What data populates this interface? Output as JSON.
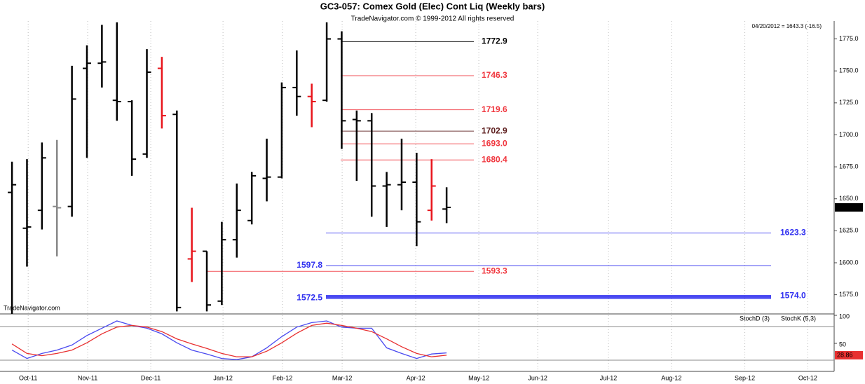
{
  "chart_data": [
    {
      "type": "ohlc",
      "title": "GC3-057:  Comex Gold (Elec) Cont Liq  (Weekly bars)",
      "subtitle": "TradeNavigator.com © 1999-2012 All rights reserved",
      "annotation": "04/20/2012 = 1643.3 (-16.5)",
      "watermark": "TradeNavigator.com",
      "categories": [
        null,
        null,
        null,
        null,
        null,
        null,
        null,
        null,
        null,
        null,
        null,
        null,
        null,
        null,
        null,
        null,
        null,
        null,
        null,
        null,
        null,
        null,
        null,
        null,
        null,
        null,
        null,
        null,
        null,
        null
      ],
      "open": [
        1655,
        1627,
        1641,
        1644,
        1644,
        1752,
        1756,
        1727,
        1726,
        1685,
        1752,
        1716,
        1603,
        1609,
        1570,
        1618,
        1633,
        1666,
        1667,
        1737,
        1730,
        1727,
        1775,
        1712,
        1711,
        1660,
        1661,
        1663,
        1641,
        1642
      ],
      "high": [
        1679,
        1681,
        1694,
        1696,
        1754,
        1770,
        1786,
        1788,
        1727,
        1767,
        1761,
        1719,
        1643,
        1609,
        1632,
        1662,
        1671,
        1697,
        1741,
        1766,
        1740,
        1788,
        1781,
        1719,
        1717,
        1671,
        1697,
        1686,
        1681,
        1659
      ],
      "low": [
        1560,
        1597,
        1626,
        1605,
        1636,
        1682,
        1737,
        1711,
        1668,
        1682,
        1705,
        1562,
        1585,
        1562,
        1567,
        1604,
        1630,
        1648,
        1666,
        1715,
        1706,
        1726,
        1689,
        1664,
        1636,
        1628,
        1641,
        1613,
        1633,
        1631
      ],
      "close": [
        1661,
        1628,
        1682,
        1643,
        1728,
        1756,
        1757,
        1726,
        1681,
        1749,
        1715,
        1565,
        1609,
        1567,
        1618,
        1641,
        1668,
        1667,
        1737,
        1730,
        1726,
        1775,
        1711,
        1711,
        1660,
        1661,
        1663,
        1632,
        1660,
        1643.3
      ],
      "colors": [
        "#000000",
        "#000000",
        "#000000",
        "#888888",
        "#000000",
        "#000000",
        "#000000",
        "#000000",
        "#000000",
        "#000000",
        "#e8141b",
        "#000000",
        "#e8141b",
        "#000000",
        "#000000",
        "#000000",
        "#000000",
        "#000000",
        "#000000",
        "#000000",
        "#e8141b",
        "#000000",
        "#000000",
        "#000000",
        "#000000",
        "#000000",
        "#000000",
        "#000000",
        "#e8141b",
        "#000000"
      ],
      "levels": [
        {
          "value": 1772.9,
          "color": "#000000"
        },
        {
          "value": 1746.3,
          "color": "#f0353d"
        },
        {
          "value": 1719.6,
          "color": "#f0353d"
        },
        {
          "value": 1702.9,
          "color": "#5a1a1a"
        },
        {
          "value": 1693.0,
          "label": "1693.0",
          "color": "#f0353d"
        },
        {
          "value": 1680.4,
          "color": "#f0353d"
        },
        {
          "value": 1623.3,
          "color": "#3030f0"
        },
        {
          "value": 1597.8,
          "color": "#3030f0"
        },
        {
          "value": 1593.3,
          "color": "#f0353d"
        },
        {
          "value": 1572.5,
          "color": "#3030f0"
        },
        {
          "value": 1574.0,
          "label": "1574.0",
          "color": "#3030f0"
        }
      ],
      "xlim": [
        -0.8,
        54.86
      ],
      "ylim": [
        1560,
        1789
      ],
      "yticks": [
        {
          "value": 1775,
          "label": "1775.0"
        },
        {
          "value": 1750,
          "label": "1750.0"
        },
        {
          "value": 1725,
          "label": "1725.0"
        },
        {
          "value": 1700,
          "label": "1700.0"
        },
        {
          "value": 1675,
          "label": "1675.0"
        },
        {
          "value": 1650,
          "label": "1650.0"
        },
        {
          "value": 1625,
          "label": "1625.0"
        },
        {
          "value": 1600,
          "label": "1600.0"
        },
        {
          "value": 1575,
          "label": "1575.0"
        }
      ]
    },
    {
      "type": "line",
      "series": [
        {
          "name": "StochK (5,3)",
          "color": "#4a4af0",
          "values": [
            38,
            23,
            32,
            38,
            47,
            64,
            77,
            90,
            82,
            77,
            67,
            51,
            38,
            31,
            23,
            21,
            26,
            42,
            62,
            79,
            87,
            90,
            79,
            77,
            77,
            42,
            32,
            23,
            31,
            33
          ]
        },
        {
          "name": "StochD (3)",
          "color": "#e83030",
          "values": [
            49,
            32,
            28,
            32,
            38,
            51,
            67,
            79,
            82,
            79,
            71,
            58,
            49,
            41,
            32,
            26,
            26,
            36,
            51,
            68,
            82,
            86,
            82,
            77,
            71,
            58,
            44,
            32,
            26,
            28.86
          ]
        }
      ],
      "levels": [
        80,
        20
      ],
      "ylim": [
        0,
        100
      ],
      "yticks": [
        100,
        50
      ],
      "xticks": [
        {
          "value": 1.08,
          "label": "Oct-11"
        },
        {
          "value": 5.05,
          "label": "Nov-11"
        },
        {
          "value": 9.26,
          "label": "Dec-11"
        },
        {
          "value": 14.08,
          "label": "Jan-12"
        },
        {
          "value": 18.05,
          "label": "Feb-12"
        },
        {
          "value": 22.03,
          "label": "Mar-12"
        },
        {
          "value": 26.94,
          "label": "Apr-12"
        },
        {
          "value": 31.15,
          "label": "May-12"
        },
        {
          "value": 35.08,
          "label": "Jun-12"
        },
        {
          "value": 39.8,
          "label": "Jul-12"
        },
        {
          "value": 44.0,
          "label": "Aug-12"
        },
        {
          "value": 48.9,
          "label": "Sep-12"
        },
        {
          "value": 53.1,
          "label": "Oct-12"
        }
      ]
    }
  ]
}
